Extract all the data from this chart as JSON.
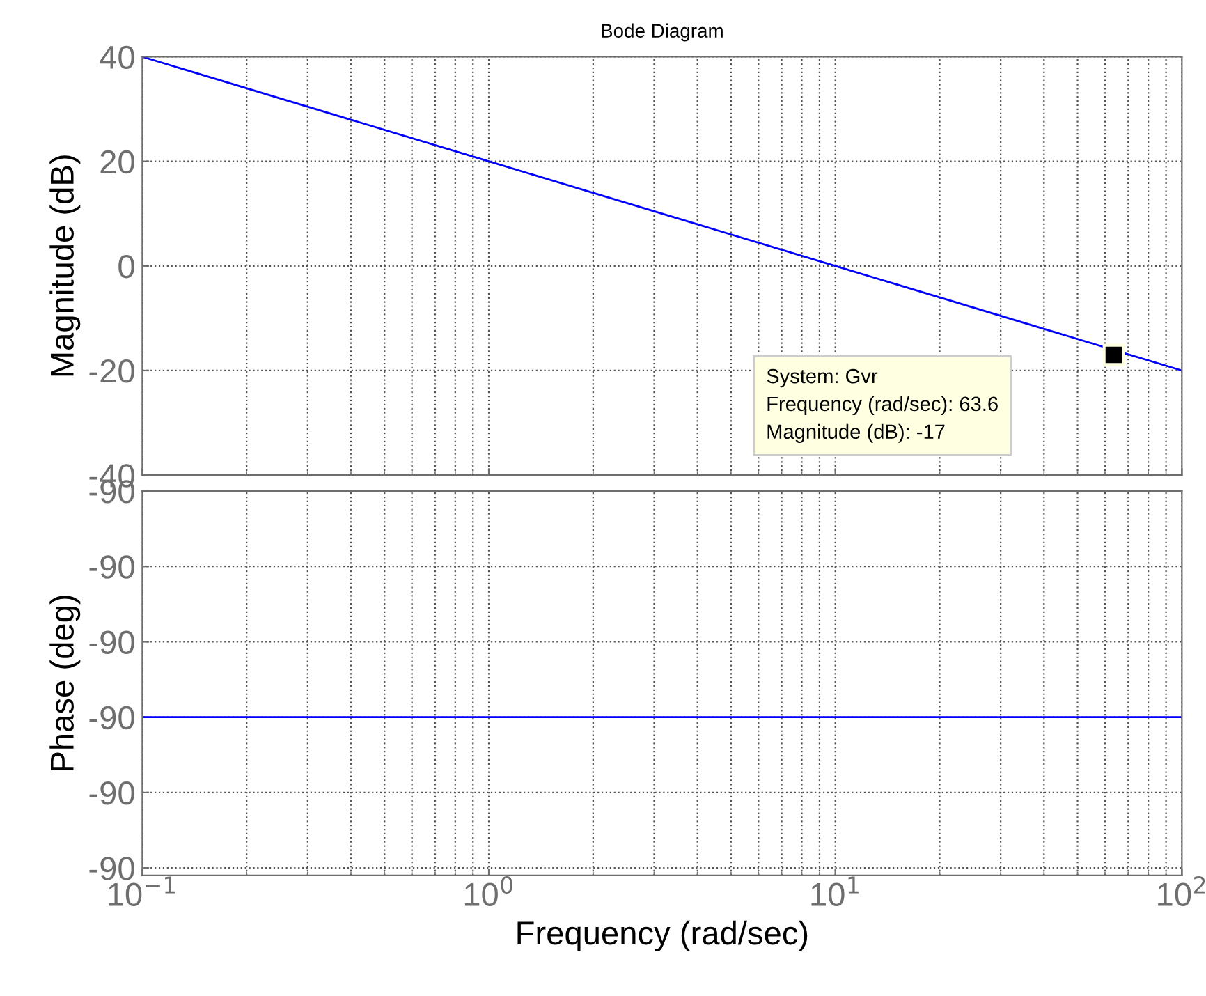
{
  "chart_data": [
    {
      "type": "line",
      "title": "Bode Diagram",
      "ylabel": "Magnitude (dB)",
      "series": [
        {
          "color": "#0000ff",
          "x": [
            0.1,
            1,
            10,
            100
          ],
          "values": [
            40,
            20,
            0,
            -20
          ]
        },
        {
          "type": "scatter",
          "marker": "square",
          "color": "#000000",
          "x": [
            63.6
          ],
          "values": [
            -17
          ]
        }
      ],
      "log": "x",
      "xlim": [
        0.1,
        100
      ],
      "ylim": [
        -40,
        40
      ],
      "yticks": [
        -40,
        -20,
        0,
        20,
        40
      ],
      "grid": true,
      "tick_labels": "y",
      "marker": "none",
      "line_style": "solid",
      "annotations": [
        "System: Gvr\nFrequency (rad/sec): 63.6\nMagnitude (dB): -17"
      ]
    },
    {
      "type": "line",
      "ylabel": "Phase (deg)",
      "xlabel": "Frequency (rad/sec)",
      "series": [
        {
          "color": "#0000ff",
          "x": [
            0.1,
            100
          ],
          "values": [
            -90,
            -90
          ]
        }
      ],
      "log": "x",
      "xlim": [
        0.1,
        100
      ],
      "xticks": [
        {
          "value": 0.1,
          "label": "10$^{−1}$"
        },
        {
          "value": 1,
          "label": "10$^{0}$"
        },
        {
          "value": 10,
          "label": "10$^{1}$"
        },
        {
          "value": 100,
          "label": "10$^{2}$"
        }
      ],
      "ylim": [
        -90.021,
        -89.97
      ],
      "yticks": [
        {
          "value": -89.97,
          "label": "-90"
        },
        {
          "value": -89.98,
          "label": "-90"
        },
        {
          "value": -89.99,
          "label": "-90"
        },
        {
          "value": -90,
          "label": "-90"
        },
        {
          "value": -90.01,
          "label": "-90"
        },
        {
          "value": -90.02,
          "label": "-90"
        }
      ],
      "grid": true,
      "marker": "none",
      "line_style": "solid"
    }
  ]
}
